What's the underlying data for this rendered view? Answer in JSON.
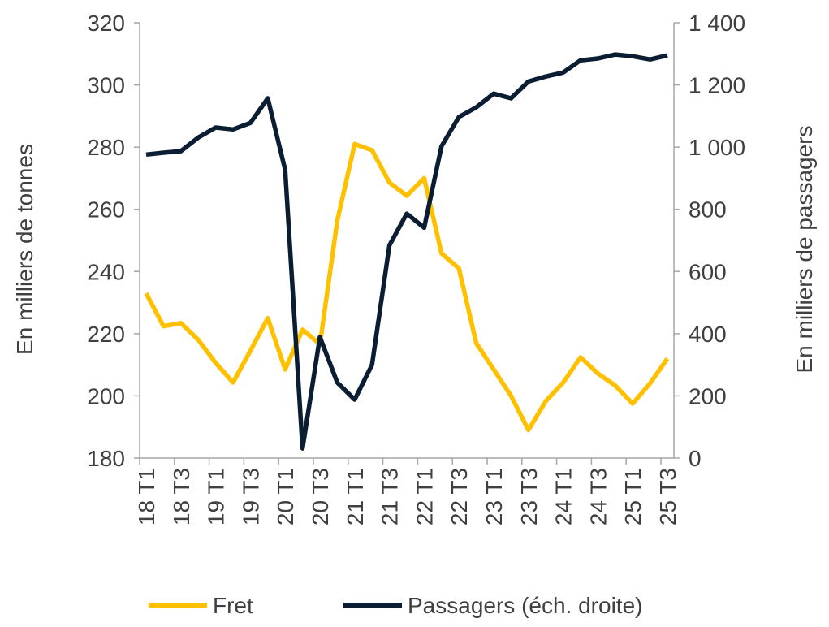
{
  "chart_data": {
    "type": "line",
    "title": "",
    "x": [
      "18 T1",
      "18 T2",
      "18 T3",
      "18 T4",
      "19 T1",
      "19 T2",
      "19 T3",
      "19 T4",
      "20 T1",
      "20 T2",
      "20 T3",
      "20 T4",
      "21 T1",
      "21 T2",
      "21 T3",
      "21 T4",
      "22 T1",
      "22 T2",
      "22 T3",
      "22 T4",
      "23 T1",
      "23 T2",
      "23 T3",
      "23 T4",
      "24 T1",
      "24 T2",
      "24 T3",
      "24 T4",
      "25 T1",
      "25 T2",
      "25 T3"
    ],
    "x_tick_labels": [
      "18 T1",
      "18 T3",
      "19 T1",
      "19 T3",
      "20 T1",
      "20 T3",
      "21 T1",
      "21 T3",
      "22 T1",
      "22 T3",
      "23 T1",
      "23 T3",
      "24 T1",
      "24 T3",
      "25 T1",
      "25 T3"
    ],
    "ylabel": "En milliers de tonnes",
    "ylabel_right": "En milliers de passagers",
    "ylim": [
      180,
      320
    ],
    "ylim_right": [
      0,
      1400
    ],
    "yticks": [
      "180",
      "200",
      "220",
      "240",
      "260",
      "280",
      "300",
      "320"
    ],
    "yticks_right": [
      "0",
      "200",
      "400",
      "600",
      "800",
      "1 000",
      "1 200",
      "1 400"
    ],
    "grid": false,
    "legend_position": "bottom",
    "series": [
      {
        "name": "Fret",
        "axis": "left",
        "color": "#FFC000",
        "values": [
          233,
          222.4,
          223.4,
          218,
          210.6,
          204.3,
          214.5,
          225,
          208.5,
          221.3,
          216.6,
          256.3,
          281,
          279,
          268.6,
          264.4,
          270,
          245.8,
          241,
          216.9,
          208.5,
          200,
          189,
          198.3,
          204.3,
          212.4,
          207.2,
          203.3,
          197.5,
          204,
          212
        ]
      },
      {
        "name": "Passagers (éch. droite)",
        "axis": "right",
        "color": "#0B1D33",
        "values": [
          976,
          982,
          987,
          1031,
          1063,
          1057,
          1078,
          1157,
          927,
          31,
          389,
          243,
          188,
          300,
          684,
          786,
          741,
          1003,
          1097,
          1128,
          1172,
          1157,
          1211,
          1227,
          1240,
          1279,
          1285,
          1298,
          1292,
          1282,
          1295
        ]
      }
    ]
  }
}
